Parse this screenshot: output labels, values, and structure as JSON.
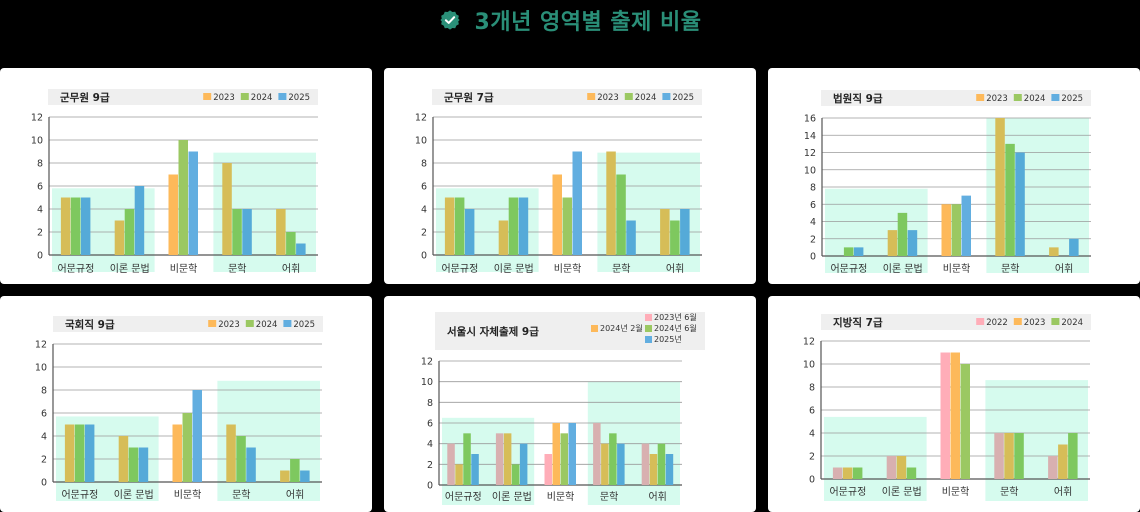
{
  "header": {
    "title": "3개년 영역별 출제 비율",
    "icon": "verified-check-badge-icon",
    "accent_color": "#2a8f78"
  },
  "colors": {
    "page_bg": "#000000",
    "card_bg": "#ffffff",
    "header_bar_bg": "#efefef",
    "highlight_zone": "#d6fbee",
    "gridline": "#9a9a9a",
    "axis": "#555555",
    "series": {
      "pink": "#ffadb8",
      "orange": "#fdb95a",
      "green": "#9bc862",
      "blue": "#62aee0"
    },
    "series_in_highlight": {
      "pink": "#d8b0b0",
      "orange": "#d6bd58",
      "green": "#7ec85f",
      "blue": "#55aad8"
    }
  },
  "chart_data": [
    {
      "type": "bar",
      "title": "군무원 9급",
      "categories": [
        "어문규정",
        "이론 문법",
        "비문학",
        "문학",
        "어휘"
      ],
      "series": [
        {
          "name": "2023",
          "color": "orange",
          "values": [
            5,
            3,
            7,
            8,
            4
          ]
        },
        {
          "name": "2024",
          "color": "green",
          "values": [
            5,
            4,
            10,
            4,
            2
          ]
        },
        {
          "name": "2025",
          "color": "blue",
          "values": [
            5,
            6,
            9,
            4,
            1
          ]
        }
      ],
      "ylim": [
        0,
        12
      ],
      "yticks": [
        0,
        2,
        4,
        6,
        8,
        10,
        12
      ],
      "grid": true,
      "legend_position": "top-right",
      "highlight_zones": [
        {
          "categories": [
            0,
            1
          ],
          "top": 5.8
        },
        {
          "categories": [
            3,
            4
          ],
          "top": 8.9
        }
      ],
      "xlabel": "",
      "ylabel": ""
    },
    {
      "type": "bar",
      "title": "군무원 7급",
      "categories": [
        "어문규정",
        "이론 문법",
        "비문학",
        "문학",
        "어휘"
      ],
      "series": [
        {
          "name": "2023",
          "color": "orange",
          "values": [
            5,
            3,
            7,
            9,
            4
          ]
        },
        {
          "name": "2024",
          "color": "green",
          "values": [
            5,
            5,
            5,
            7,
            3
          ]
        },
        {
          "name": "2025",
          "color": "blue",
          "values": [
            4,
            5,
            9,
            3,
            4
          ]
        }
      ],
      "ylim": [
        0,
        12
      ],
      "yticks": [
        0,
        2,
        4,
        6,
        8,
        10,
        12
      ],
      "grid": true,
      "legend_position": "top-right",
      "highlight_zones": [
        {
          "categories": [
            0,
            1
          ],
          "top": 5.8
        },
        {
          "categories": [
            3,
            4
          ],
          "top": 8.9
        }
      ],
      "xlabel": "",
      "ylabel": ""
    },
    {
      "type": "bar",
      "title": "법원직 9급",
      "categories": [
        "어문규정",
        "이론 문법",
        "비문학",
        "문학",
        "어휘"
      ],
      "series": [
        {
          "name": "2023",
          "color": "orange",
          "values": [
            0,
            3,
            6,
            16,
            1
          ]
        },
        {
          "name": "2024",
          "color": "green",
          "values": [
            1,
            5,
            6,
            13,
            0
          ]
        },
        {
          "name": "2025",
          "color": "blue",
          "values": [
            1,
            3,
            7,
            12,
            2
          ]
        }
      ],
      "ylim": [
        0,
        16
      ],
      "yticks": [
        0,
        2,
        4,
        6,
        8,
        10,
        12,
        14,
        16
      ],
      "grid": true,
      "legend_position": "top-right",
      "highlight_zones": [
        {
          "categories": [
            0,
            1
          ],
          "top": 7.8
        },
        {
          "categories": [
            3,
            4
          ],
          "top": 16
        }
      ],
      "xlabel": "",
      "ylabel": ""
    },
    {
      "type": "bar",
      "title": "국회직 9급",
      "categories": [
        "어문규정",
        "이론 문법",
        "비문학",
        "문학",
        "어휘"
      ],
      "series": [
        {
          "name": "2023",
          "color": "orange",
          "values": [
            5,
            4,
            5,
            5,
            1
          ]
        },
        {
          "name": "2024",
          "color": "green",
          "values": [
            5,
            3,
            6,
            4,
            2
          ]
        },
        {
          "name": "2025",
          "color": "blue",
          "values": [
            5,
            3,
            8,
            3,
            1
          ]
        }
      ],
      "ylim": [
        0,
        12
      ],
      "yticks": [
        0,
        2,
        4,
        6,
        8,
        10,
        12
      ],
      "grid": true,
      "legend_position": "top-right",
      "highlight_zones": [
        {
          "categories": [
            0,
            1
          ],
          "top": 5.7
        },
        {
          "categories": [
            3,
            4
          ],
          "top": 8.8
        }
      ],
      "xlabel": "",
      "ylabel": ""
    },
    {
      "type": "bar",
      "title": "서울시 자체출제 9급",
      "categories": [
        "어문규정",
        "이론 문법",
        "비문학",
        "문학",
        "어휘"
      ],
      "series": [
        {
          "name": "2023년 6월",
          "color": "pink",
          "values": [
            4,
            5,
            3,
            6,
            4
          ]
        },
        {
          "name": "2024년 2월",
          "color": "orange",
          "values": [
            2,
            5,
            6,
            4,
            3
          ]
        },
        {
          "name": "2024년 6월",
          "color": "green",
          "values": [
            5,
            2,
            5,
            5,
            4
          ]
        },
        {
          "name": "2025년",
          "color": "blue",
          "values": [
            3,
            4,
            6,
            4,
            3
          ]
        }
      ],
      "ylim": [
        0,
        12
      ],
      "yticks": [
        0,
        2,
        4,
        6,
        8,
        10,
        12
      ],
      "grid": true,
      "legend_position": "top-right",
      "highlight_zones": [
        {
          "categories": [
            0,
            1
          ],
          "top": 6.5
        },
        {
          "categories": [
            3,
            4
          ],
          "top": 10
        }
      ],
      "xlabel": "",
      "ylabel": ""
    },
    {
      "type": "bar",
      "title": "지방직 7급",
      "categories": [
        "어문규정",
        "이론 문법",
        "비문학",
        "문학",
        "어휘"
      ],
      "series": [
        {
          "name": "2022",
          "color": "pink",
          "values": [
            1,
            2,
            11,
            4,
            2
          ]
        },
        {
          "name": "2023",
          "color": "orange",
          "values": [
            1,
            2,
            11,
            4,
            3
          ]
        },
        {
          "name": "2024",
          "color": "green",
          "values": [
            1,
            1,
            10,
            4,
            4
          ]
        }
      ],
      "ylim": [
        0,
        12
      ],
      "yticks": [
        0,
        2,
        4,
        6,
        8,
        10,
        12
      ],
      "grid": true,
      "legend_position": "top-right",
      "highlight_zones": [
        {
          "categories": [
            0,
            1
          ],
          "top": 5.4
        },
        {
          "categories": [
            3,
            4
          ],
          "top": 8.6
        }
      ],
      "xlabel": "",
      "ylabel": ""
    }
  ]
}
